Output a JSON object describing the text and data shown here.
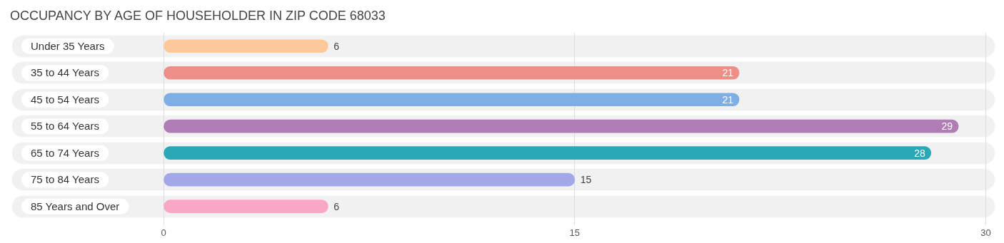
{
  "chart_data": {
    "type": "bar",
    "orientation": "horizontal",
    "title": "OCCUPANCY BY AGE OF HOUSEHOLDER IN ZIP CODE 68033",
    "categories": [
      "Under 35 Years",
      "35 to 44 Years",
      "45 to 54 Years",
      "55 to 64 Years",
      "65 to 74 Years",
      "75 to 84 Years",
      "85 Years and Over"
    ],
    "values": [
      6,
      21,
      21,
      29,
      28,
      15,
      6
    ],
    "colors": [
      "#fdc99a",
      "#ee8f87",
      "#7eaee3",
      "#b07db4",
      "#2ba8b7",
      "#a3a9e8",
      "#f8a7c4"
    ],
    "xlim": [
      -5.5,
      30.3
    ],
    "xticks": [
      0,
      15,
      30
    ],
    "grid": "x",
    "data_labels": true,
    "legend": false
  }
}
